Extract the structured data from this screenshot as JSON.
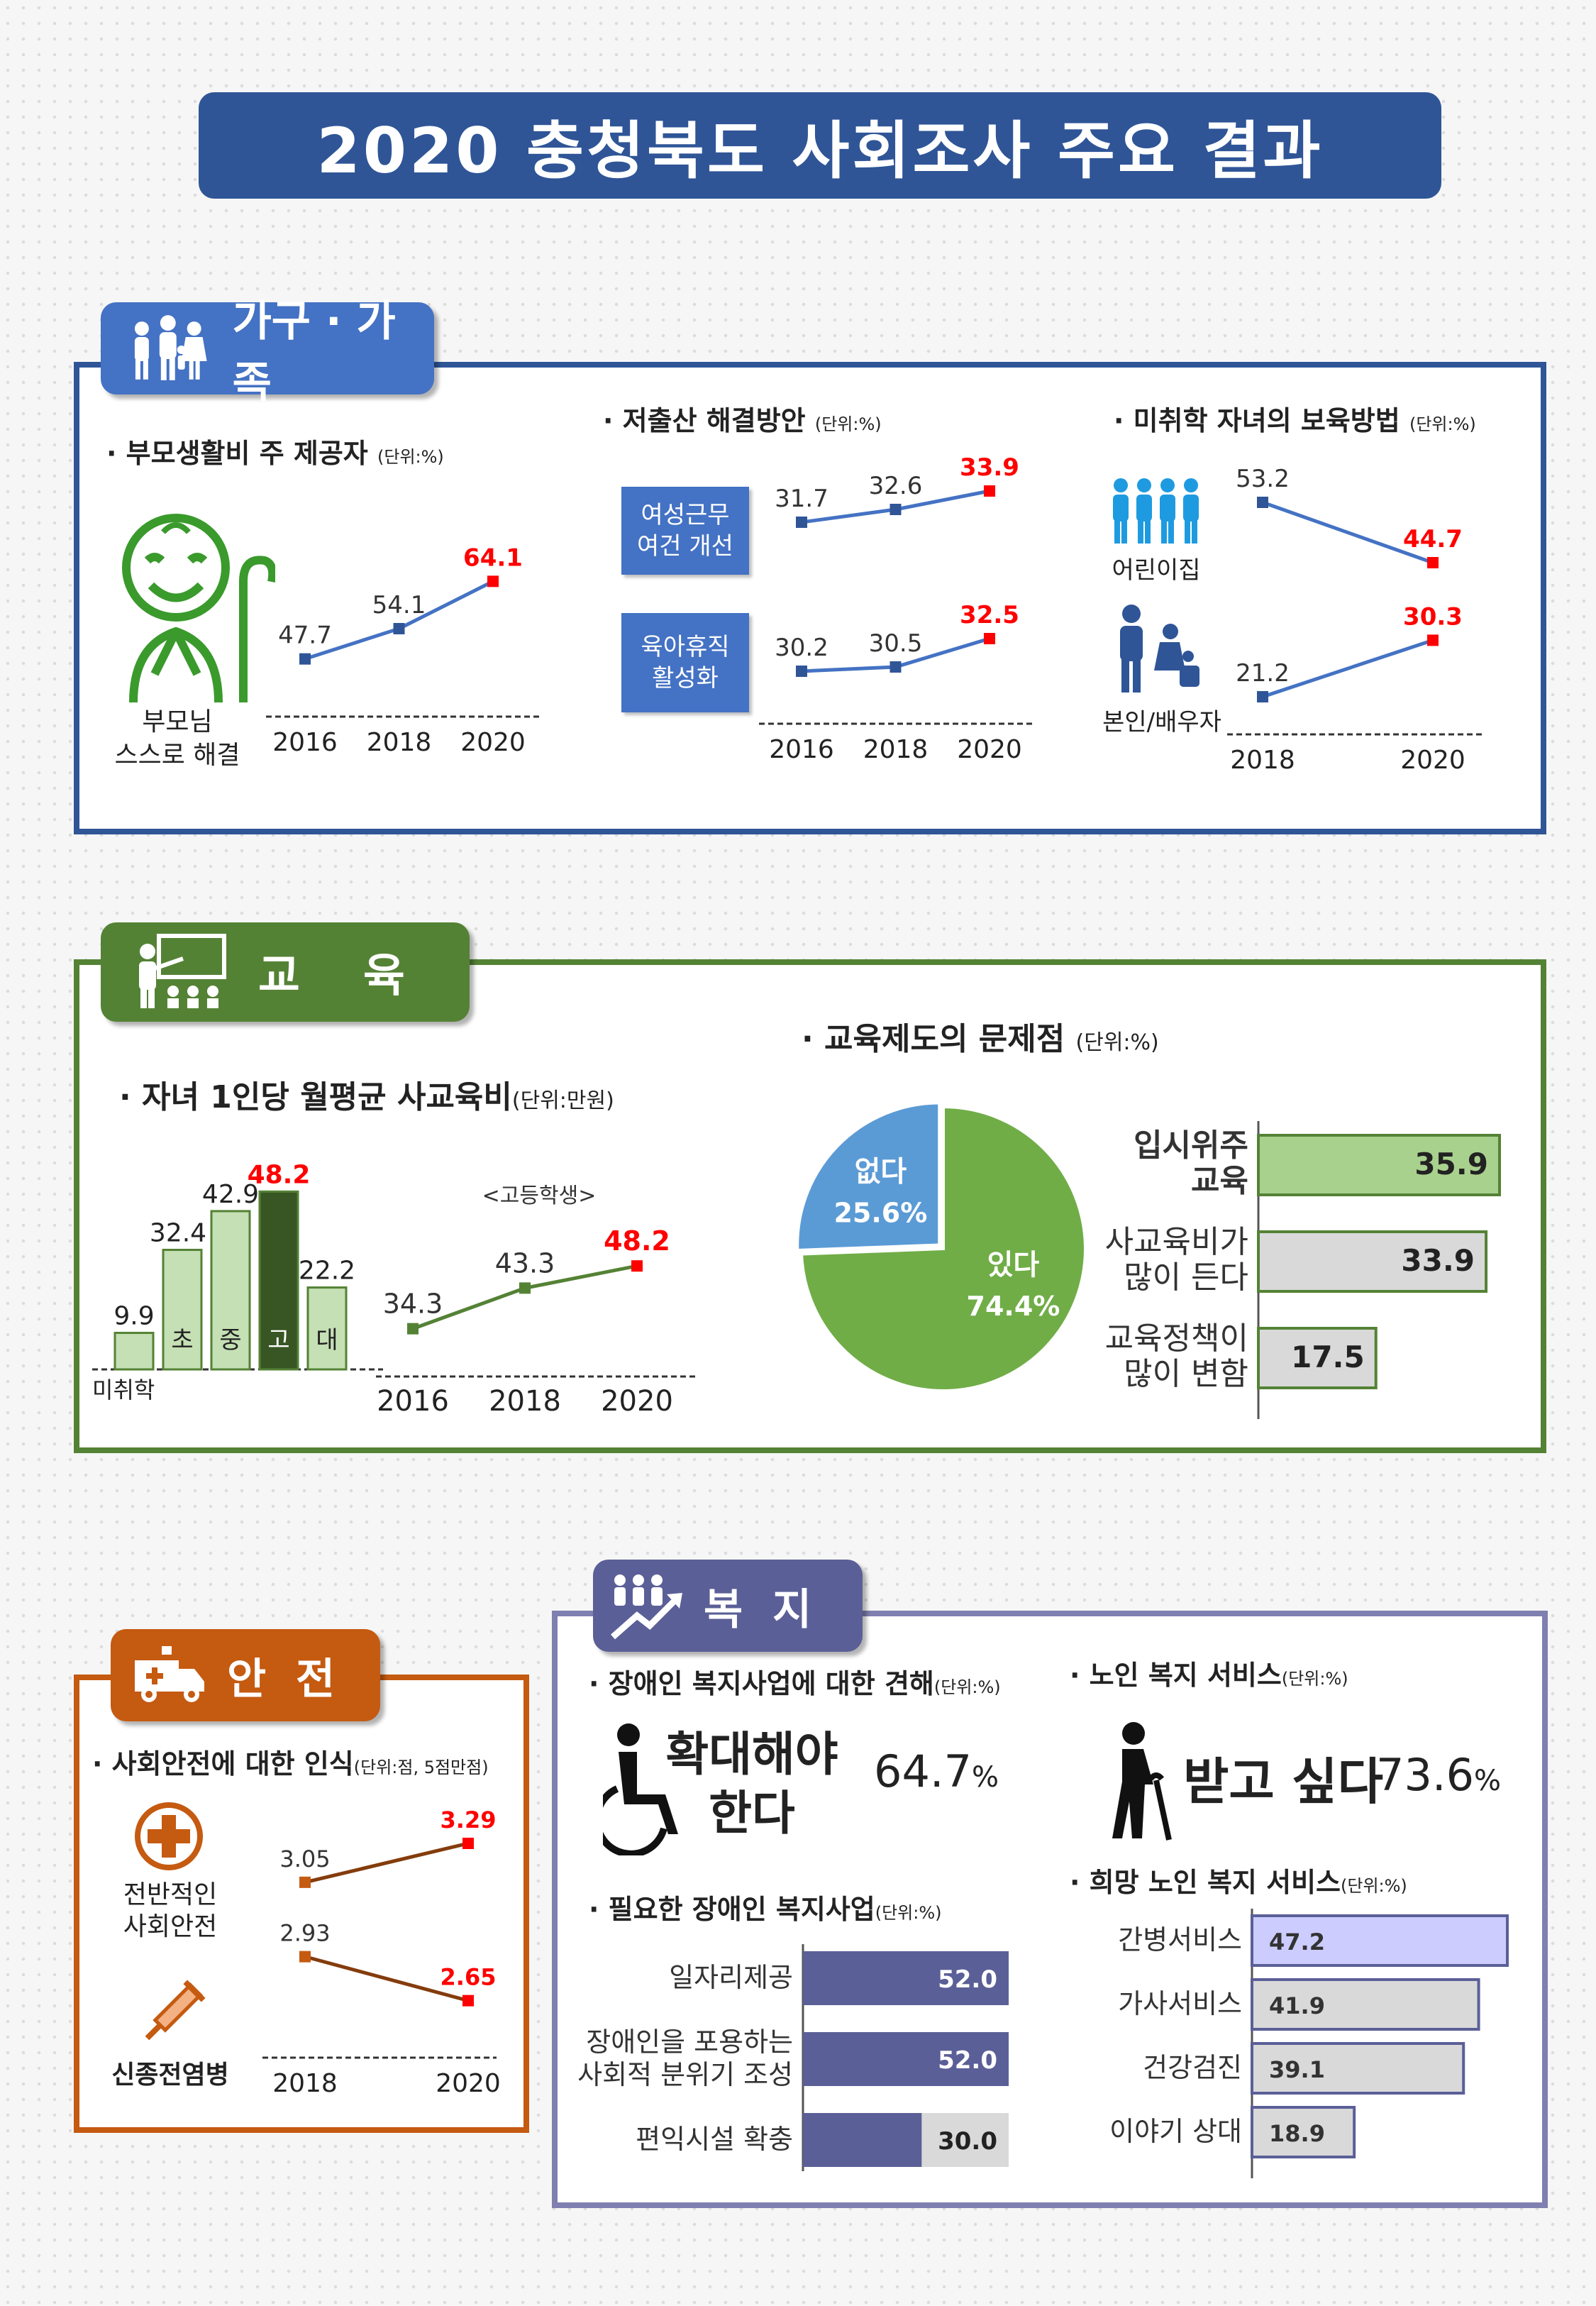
{
  "title": "2020 충청북도 사회조사 주요 결과",
  "colors": {
    "navy": "#2f5597",
    "green": "#548235",
    "orange": "#c55a11",
    "purple": "#5b5f97",
    "red": "#ff0000"
  },
  "family": {
    "tab": "가구 · 가족",
    "parents": {
      "title": "· 부모생활비 주 제공자",
      "unit": "(단위:%)",
      "figure_label": "부모님\n스스로 해결"
    },
    "birth": {
      "title": "· 저출산 해결방안",
      "unit": "(단위:%)",
      "label1": "여성근무\n여건 개선",
      "label2": "육아휴직\n활성화"
    },
    "care": {
      "title": "· 미취학 자녀의 보육방법",
      "unit": "(단위:%)",
      "label1": "어린이집",
      "label2": "본인/배우자"
    }
  },
  "education": {
    "tab": "교    육",
    "cost": {
      "title": "· 자녀 1인당 월평균 사교육비",
      "unit": "(단위:만원)",
      "series_note": "<고등학생>"
    },
    "problem": {
      "title": "· 교육제도의 문제점",
      "unit": "(단위:%)"
    }
  },
  "safety": {
    "tab": "안  전",
    "title": "· 사회안전에 대한 인식",
    "unit": "(단위:점, 5점만점)",
    "label1": "전반적인\n사회안전",
    "label2": "신종전염병"
  },
  "welfare": {
    "tab": "복  지",
    "disabled_view": {
      "title": "· 장애인 복지사업에 대한 견해",
      "unit": "(단위:%)",
      "text": "확대해야\n한다",
      "value": "64.7",
      "pct": "%"
    },
    "senior_service": {
      "title": "· 노인 복지 서비스",
      "unit": "(단위:%)",
      "text": "받고 싶다",
      "value": "73.6",
      "pct": "%"
    },
    "needed": {
      "title": "· 필요한 장애인 복지사업",
      "unit": "(단위:%)"
    },
    "wanted": {
      "title": "· 희망 노인 복지 서비스",
      "unit": "(단위:%)"
    }
  },
  "chart_data": [
    {
      "id": "parents_self",
      "type": "line",
      "x": [
        "2016",
        "2018",
        "2020"
      ],
      "series": [
        {
          "values": [
            47.7,
            54.1,
            64.1
          ]
        }
      ]
    },
    {
      "id": "low_birth",
      "type": "line",
      "x": [
        "2016",
        "2018",
        "2020"
      ],
      "series": [
        {
          "name": "여성근무 여건 개선",
          "values": [
            31.7,
            32.6,
            33.9
          ]
        },
        {
          "name": "육아휴직 활성화",
          "values": [
            30.2,
            30.5,
            32.5
          ]
        }
      ]
    },
    {
      "id": "childcare",
      "type": "line",
      "x": [
        "2018",
        "2020"
      ],
      "series": [
        {
          "name": "어린이집",
          "values": [
            53.2,
            44.7
          ]
        },
        {
          "name": "본인/배우자",
          "values": [
            21.2,
            30.3
          ]
        }
      ]
    },
    {
      "id": "edu_cost_by_level",
      "type": "bar",
      "categories": [
        "미취학",
        "초",
        "중",
        "고",
        "대"
      ],
      "values": [
        9.9,
        32.4,
        42.9,
        48.2,
        22.2
      ]
    },
    {
      "id": "edu_cost_high",
      "type": "line",
      "x": [
        "2016",
        "2018",
        "2020"
      ],
      "series": [
        {
          "name": "<고등학생>",
          "values": [
            34.3,
            43.3,
            48.2
          ]
        }
      ]
    },
    {
      "id": "edu_problem_exist",
      "type": "pie",
      "categories": [
        "없다",
        "있다"
      ],
      "values": [
        25.6,
        74.4
      ]
    },
    {
      "id": "edu_problems",
      "type": "bar",
      "categories": [
        "입시위주\n교육",
        "사교육비가\n많이 든다",
        "교육정책이\n많이 변함"
      ],
      "values": [
        35.9,
        33.9,
        17.5
      ]
    },
    {
      "id": "social_safety",
      "type": "line",
      "x": [
        "2018",
        "2020"
      ],
      "series": [
        {
          "name": "전반적인 사회안전",
          "values": [
            3.05,
            3.29
          ]
        },
        {
          "name": "신종전염병",
          "values": [
            2.93,
            2.65
          ]
        }
      ]
    },
    {
      "id": "needed_disabled",
      "type": "bar",
      "categories": [
        "일자리제공",
        "장애인을 포용하는\n사회적 분위기 조성",
        "편익시설 확충"
      ],
      "values": [
        52.0,
        52.0,
        30.0
      ]
    },
    {
      "id": "wanted_senior",
      "type": "bar",
      "categories": [
        "간병서비스",
        "가사서비스",
        "건강검진",
        "이야기 상대"
      ],
      "values": [
        47.2,
        41.9,
        39.1,
        18.9
      ]
    }
  ]
}
